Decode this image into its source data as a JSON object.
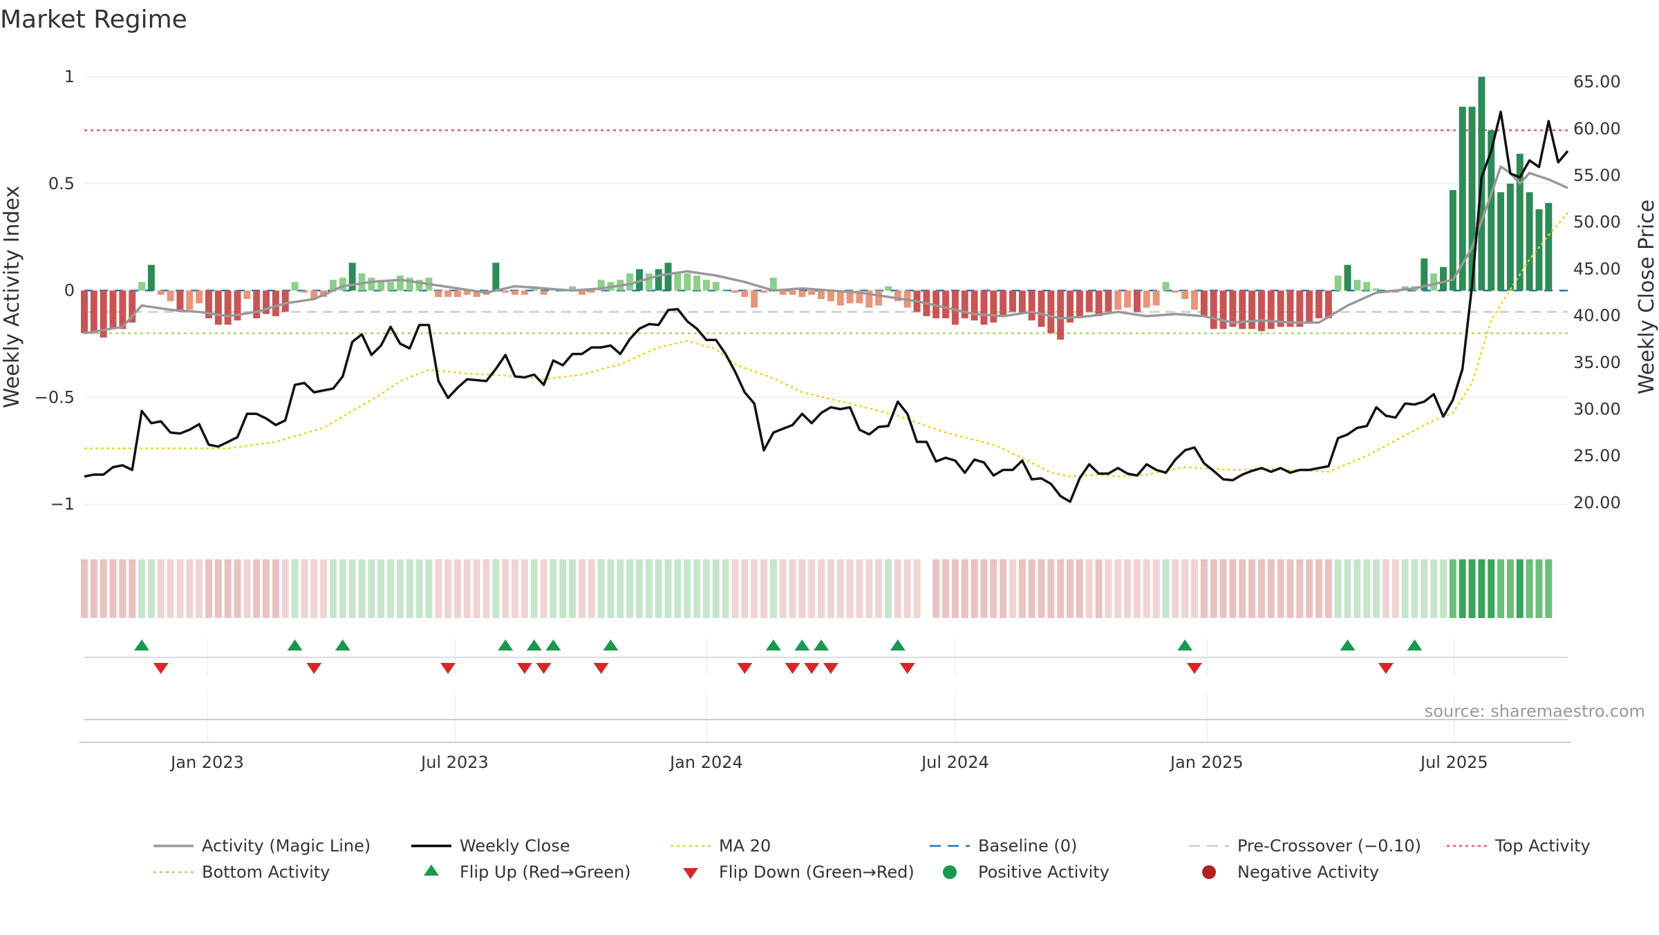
{
  "chart_data": {
    "type": "line",
    "title": "Market Regime",
    "source": "source: sharemaestro.com",
    "y_left": {
      "label": "Weekly Activity Index",
      "range": [
        -1.08,
        1.02
      ],
      "ticks": [
        -1,
        -0.5,
        0,
        0.5,
        1
      ],
      "tick_labels": [
        "−1",
        "−0.5",
        "0",
        "0.5",
        "1"
      ]
    },
    "y_right": {
      "label": "Weekly Close Price",
      "range": [
        18.0,
        66.0
      ],
      "ticks": [
        20,
        25,
        30,
        35,
        40,
        45,
        50,
        55,
        60,
        65
      ],
      "tick_labels": [
        "20.00",
        "25.00",
        "30.00",
        "35.00",
        "40.00",
        "45.00",
        "50.00",
        "55.00",
        "60.00",
        "65.00"
      ]
    },
    "x_axis": {
      "start": "2022-10-03",
      "end": "2025-09-22",
      "ticks": [
        "2023-01-01",
        "2023-07-01",
        "2024-01-01",
        "2024-07-01",
        "2025-01-01",
        "2025-07-01"
      ],
      "tick_labels": [
        "Jan 2023",
        "Jul 2023",
        "Jan 2024",
        "Jul 2024",
        "Jan 2025",
        "Jul 2025"
      ]
    },
    "reference_lines": {
      "top_activity": 0.75,
      "pre_crossover": -0.1,
      "bottom_activity": -0.2,
      "baseline": 0
    },
    "weekly_close": [
      [
        0,
        22.8
      ],
      [
        1,
        23.0
      ],
      [
        2,
        23.0
      ],
      [
        3,
        23.8
      ],
      [
        4,
        24.0
      ],
      [
        5,
        23.5
      ],
      [
        6,
        29.8
      ],
      [
        7,
        28.5
      ],
      [
        8,
        28.7
      ],
      [
        9,
        27.5
      ],
      [
        10,
        27.4
      ],
      [
        11,
        27.8
      ],
      [
        12,
        28.4
      ],
      [
        13,
        26.2
      ],
      [
        14,
        26.0
      ],
      [
        15,
        26.5
      ],
      [
        16,
        27.0
      ],
      [
        17,
        29.5
      ],
      [
        18,
        29.5
      ],
      [
        19,
        29.0
      ],
      [
        20,
        28.3
      ],
      [
        21,
        28.8
      ],
      [
        22,
        32.6
      ],
      [
        23,
        32.8
      ],
      [
        24,
        31.8
      ],
      [
        25,
        32.0
      ],
      [
        26,
        32.2
      ],
      [
        27,
        33.5
      ],
      [
        28,
        37.2
      ],
      [
        29,
        38.0
      ],
      [
        30,
        35.8
      ],
      [
        31,
        36.8
      ],
      [
        32,
        38.8
      ],
      [
        33,
        37.0
      ],
      [
        34,
        36.5
      ],
      [
        35,
        39.0
      ],
      [
        36,
        39.0
      ],
      [
        37,
        33.0
      ],
      [
        38,
        31.2
      ],
      [
        39,
        32.3
      ],
      [
        40,
        33.2
      ],
      [
        41,
        33.1
      ],
      [
        42,
        33.0
      ],
      [
        43,
        34.3
      ],
      [
        44,
        35.8
      ],
      [
        45,
        33.5
      ],
      [
        46,
        33.4
      ],
      [
        47,
        33.7
      ],
      [
        48,
        32.6
      ],
      [
        49,
        35.2
      ],
      [
        50,
        34.7
      ],
      [
        51,
        35.9
      ],
      [
        52,
        35.9
      ],
      [
        53,
        36.6
      ],
      [
        54,
        36.6
      ],
      [
        55,
        36.8
      ],
      [
        56,
        35.9
      ],
      [
        57,
        37.5
      ],
      [
        58,
        38.6
      ],
      [
        59,
        39.1
      ],
      [
        60,
        39.0
      ],
      [
        61,
        40.6
      ],
      [
        62,
        40.7
      ],
      [
        63,
        39.4
      ],
      [
        64,
        38.6
      ],
      [
        65,
        37.4
      ],
      [
        66,
        37.4
      ],
      [
        67,
        35.9
      ],
      [
        68,
        34.0
      ],
      [
        69,
        31.8
      ],
      [
        70,
        30.6
      ],
      [
        71,
        25.6
      ],
      [
        72,
        27.5
      ],
      [
        73,
        27.9
      ],
      [
        74,
        28.3
      ],
      [
        75,
        29.5
      ],
      [
        76,
        28.5
      ],
      [
        77,
        29.6
      ],
      [
        78,
        30.2
      ],
      [
        79,
        30.0
      ],
      [
        80,
        30.2
      ],
      [
        81,
        27.8
      ],
      [
        82,
        27.3
      ],
      [
        83,
        28.1
      ],
      [
        84,
        28.2
      ],
      [
        85,
        30.8
      ],
      [
        86,
        29.5
      ],
      [
        87,
        26.5
      ],
      [
        88,
        26.5
      ],
      [
        89,
        24.4
      ],
      [
        90,
        24.8
      ],
      [
        91,
        24.5
      ],
      [
        92,
        23.2
      ],
      [
        93,
        24.6
      ],
      [
        94,
        24.3
      ],
      [
        95,
        22.9
      ],
      [
        96,
        23.5
      ],
      [
        97,
        23.5
      ],
      [
        98,
        24.5
      ],
      [
        99,
        22.5
      ],
      [
        100,
        22.6
      ],
      [
        101,
        22.0
      ],
      [
        102,
        20.7
      ],
      [
        103,
        20.1
      ],
      [
        104,
        22.6
      ],
      [
        105,
        24.1
      ],
      [
        106,
        23.1
      ],
      [
        107,
        23.1
      ],
      [
        108,
        23.7
      ],
      [
        109,
        23.1
      ],
      [
        110,
        22.9
      ],
      [
        111,
        24.1
      ],
      [
        112,
        23.5
      ],
      [
        113,
        23.2
      ],
      [
        114,
        24.6
      ],
      [
        115,
        25.6
      ],
      [
        116,
        25.9
      ],
      [
        117,
        24.2
      ],
      [
        118,
        23.4
      ],
      [
        119,
        22.5
      ],
      [
        120,
        22.4
      ],
      [
        121,
        23.0
      ],
      [
        122,
        23.4
      ],
      [
        123,
        23.7
      ],
      [
        124,
        23.3
      ],
      [
        125,
        23.7
      ],
      [
        126,
        23.2
      ],
      [
        127,
        23.5
      ],
      [
        128,
        23.5
      ],
      [
        129,
        23.7
      ],
      [
        130,
        23.9
      ],
      [
        131,
        26.9
      ],
      [
        132,
        27.3
      ],
      [
        133,
        28.0
      ],
      [
        134,
        28.2
      ],
      [
        135,
        30.2
      ],
      [
        136,
        29.3
      ],
      [
        137,
        29.1
      ],
      [
        138,
        30.6
      ],
      [
        139,
        30.5
      ],
      [
        140,
        30.8
      ],
      [
        141,
        31.6
      ],
      [
        142,
        29.2
      ],
      [
        143,
        31.0
      ],
      [
        144,
        34.3
      ],
      [
        145,
        43.2
      ],
      [
        146,
        54.8
      ],
      [
        147,
        57.6
      ],
      [
        148,
        61.8
      ],
      [
        149,
        55.2
      ],
      [
        150,
        54.8
      ],
      [
        151,
        56.6
      ],
      [
        152,
        55.9
      ],
      [
        153,
        60.8
      ],
      [
        154,
        56.4
      ],
      [
        155,
        57.6
      ]
    ],
    "ma20": [
      [
        0,
        25.8
      ],
      [
        5,
        25.8
      ],
      [
        10,
        25.8
      ],
      [
        15,
        25.8
      ],
      [
        20,
        26.5
      ],
      [
        25,
        28.0
      ],
      [
        28,
        29.8
      ],
      [
        31,
        31.6
      ],
      [
        33,
        33.0
      ],
      [
        36,
        34.2
      ],
      [
        40,
        33.8
      ],
      [
        44,
        33.6
      ],
      [
        48,
        33.2
      ],
      [
        52,
        33.7
      ],
      [
        56,
        34.8
      ],
      [
        60,
        36.6
      ],
      [
        63,
        37.3
      ],
      [
        66,
        36.4
      ],
      [
        68,
        34.8
      ],
      [
        70,
        34.0
      ],
      [
        72,
        33.3
      ],
      [
        75,
        31.8
      ],
      [
        80,
        30.6
      ],
      [
        85,
        29.3
      ],
      [
        90,
        27.5
      ],
      [
        95,
        26.2
      ],
      [
        98,
        24.8
      ],
      [
        101,
        23.2
      ],
      [
        103,
        22.8
      ],
      [
        106,
        23.0
      ],
      [
        108,
        22.8
      ],
      [
        111,
        23.0
      ],
      [
        115,
        23.8
      ],
      [
        120,
        23.5
      ],
      [
        124,
        23.6
      ],
      [
        130,
        23.3
      ],
      [
        134,
        25.0
      ],
      [
        138,
        27.2
      ],
      [
        141,
        28.8
      ],
      [
        143,
        29.6
      ],
      [
        145,
        32.8
      ],
      [
        147,
        39.5
      ],
      [
        149,
        42.8
      ],
      [
        151,
        46.0
      ],
      [
        153,
        48.6
      ],
      [
        155,
        51.0
      ]
    ],
    "activity_line": [
      [
        0,
        -0.2
      ],
      [
        4,
        -0.17
      ],
      [
        6,
        -0.07
      ],
      [
        9,
        -0.09
      ],
      [
        12,
        -0.1
      ],
      [
        15,
        -0.12
      ],
      [
        18,
        -0.1
      ],
      [
        21,
        -0.06
      ],
      [
        24,
        -0.04
      ],
      [
        27,
        0.02
      ],
      [
        30,
        0.04
      ],
      [
        33,
        0.05
      ],
      [
        36,
        0.03
      ],
      [
        39,
        0.01
      ],
      [
        42,
        -0.01
      ],
      [
        45,
        0.02
      ],
      [
        48,
        0.01
      ],
      [
        51,
        0.0
      ],
      [
        54,
        0.01
      ],
      [
        57,
        0.03
      ],
      [
        60,
        0.07
      ],
      [
        63,
        0.09
      ],
      [
        66,
        0.07
      ],
      [
        69,
        0.04
      ],
      [
        72,
        0.0
      ],
      [
        75,
        0.01
      ],
      [
        78,
        0.0
      ],
      [
        81,
        -0.01
      ],
      [
        84,
        -0.03
      ],
      [
        87,
        -0.05
      ],
      [
        90,
        -0.08
      ],
      [
        93,
        -0.11
      ],
      [
        96,
        -0.12
      ],
      [
        99,
        -0.1
      ],
      [
        102,
        -0.13
      ],
      [
        105,
        -0.12
      ],
      [
        108,
        -0.1
      ],
      [
        111,
        -0.12
      ],
      [
        114,
        -0.11
      ],
      [
        117,
        -0.12
      ],
      [
        120,
        -0.15
      ],
      [
        123,
        -0.14
      ],
      [
        126,
        -0.15
      ],
      [
        129,
        -0.15
      ],
      [
        132,
        -0.07
      ],
      [
        135,
        -0.01
      ],
      [
        137,
        0.0
      ],
      [
        139,
        0.01
      ],
      [
        141,
        0.03
      ],
      [
        143,
        0.05
      ],
      [
        145,
        0.2
      ],
      [
        147,
        0.45
      ],
      [
        148,
        0.58
      ],
      [
        149,
        0.55
      ],
      [
        150,
        0.5
      ],
      [
        151,
        0.55
      ],
      [
        153,
        0.52
      ],
      [
        155,
        0.48
      ]
    ],
    "activity_bars": [
      -0.2,
      -0.2,
      -0.22,
      -0.18,
      -0.18,
      -0.15,
      0.04,
      0.12,
      -0.02,
      -0.05,
      -0.1,
      -0.09,
      -0.06,
      -0.13,
      -0.16,
      -0.16,
      -0.14,
      -0.04,
      -0.13,
      -0.11,
      -0.12,
      -0.1,
      0.04,
      -0.01,
      -0.04,
      -0.03,
      0.05,
      0.06,
      0.13,
      0.08,
      0.06,
      0.05,
      0.04,
      0.07,
      0.06,
      0.05,
      0.06,
      -0.03,
      -0.03,
      -0.03,
      -0.02,
      -0.03,
      -0.02,
      0.13,
      -0.01,
      -0.02,
      -0.02,
      0.02,
      -0.02,
      0.01,
      0.0,
      0.02,
      -0.02,
      -0.01,
      0.05,
      0.04,
      0.05,
      0.08,
      0.1,
      0.08,
      0.1,
      0.13,
      0.08,
      0.08,
      0.07,
      0.05,
      0.04,
      0.0,
      -0.01,
      -0.03,
      -0.08,
      -0.01,
      0.06,
      -0.02,
      -0.02,
      -0.03,
      -0.02,
      -0.04,
      -0.05,
      -0.07,
      -0.06,
      -0.06,
      -0.08,
      -0.07,
      0.02,
      -0.05,
      -0.08,
      -0.1,
      -0.12,
      -0.13,
      -0.13,
      -0.16,
      -0.13,
      -0.14,
      -0.16,
      -0.15,
      -0.12,
      -0.1,
      -0.11,
      -0.14,
      -0.17,
      -0.2,
      -0.23,
      -0.15,
      -0.13,
      -0.1,
      -0.12,
      -0.1,
      -0.09,
      -0.08,
      -0.1,
      -0.08,
      -0.07,
      0.04,
      -0.01,
      -0.04,
      -0.09,
      -0.12,
      -0.18,
      -0.18,
      -0.17,
      -0.18,
      -0.18,
      -0.19,
      -0.18,
      -0.17,
      -0.17,
      -0.17,
      -0.15,
      -0.13,
      -0.13,
      0.07,
      0.12,
      0.05,
      0.04,
      0.01,
      -0.01,
      -0.01,
      0.02,
      0.02,
      0.15,
      0.08,
      0.11,
      0.47,
      0.86,
      0.86,
      1.0,
      0.75,
      0.46,
      0.5,
      0.64,
      0.46,
      0.38,
      0.41
    ],
    "flip_up_weeks": [
      6,
      22,
      27,
      44,
      47,
      49,
      55,
      72,
      75,
      77,
      85,
      115,
      132,
      139
    ],
    "flip_down_weeks": [
      8,
      24,
      38,
      46,
      48,
      54,
      69,
      74,
      76,
      78,
      86,
      116,
      136
    ],
    "legend": [
      {
        "label": "Activity (Magic Line)",
        "color": "#999999",
        "style": "solid"
      },
      {
        "label": "Weekly Close",
        "color": "#000000",
        "style": "solid"
      },
      {
        "label": "MA 20",
        "color": "#e8d633",
        "style": "dotted"
      },
      {
        "label": "Baseline (0)",
        "color": "#1f77b4",
        "style": "dashed"
      },
      {
        "label": "Pre-Crossover (−0.10)",
        "color": "#cccccc",
        "style": "dashed"
      },
      {
        "label": "Top Activity",
        "color": "#e05a6a",
        "style": "dotted"
      },
      {
        "label": "Bottom Activity",
        "color": "#a6d96a",
        "style": "dotted"
      },
      {
        "label": "Flip Up (Red→Green)",
        "color": "#1a9850",
        "style": "triangle-up"
      },
      {
        "label": "Flip Down (Green→Red)",
        "color": "#d62728",
        "style": "triangle-down"
      },
      {
        "label": "Positive Activity",
        "color": "#1a9850",
        "style": "dot"
      },
      {
        "label": "Negative Activity",
        "color": "#b22222",
        "style": "dot"
      }
    ]
  }
}
